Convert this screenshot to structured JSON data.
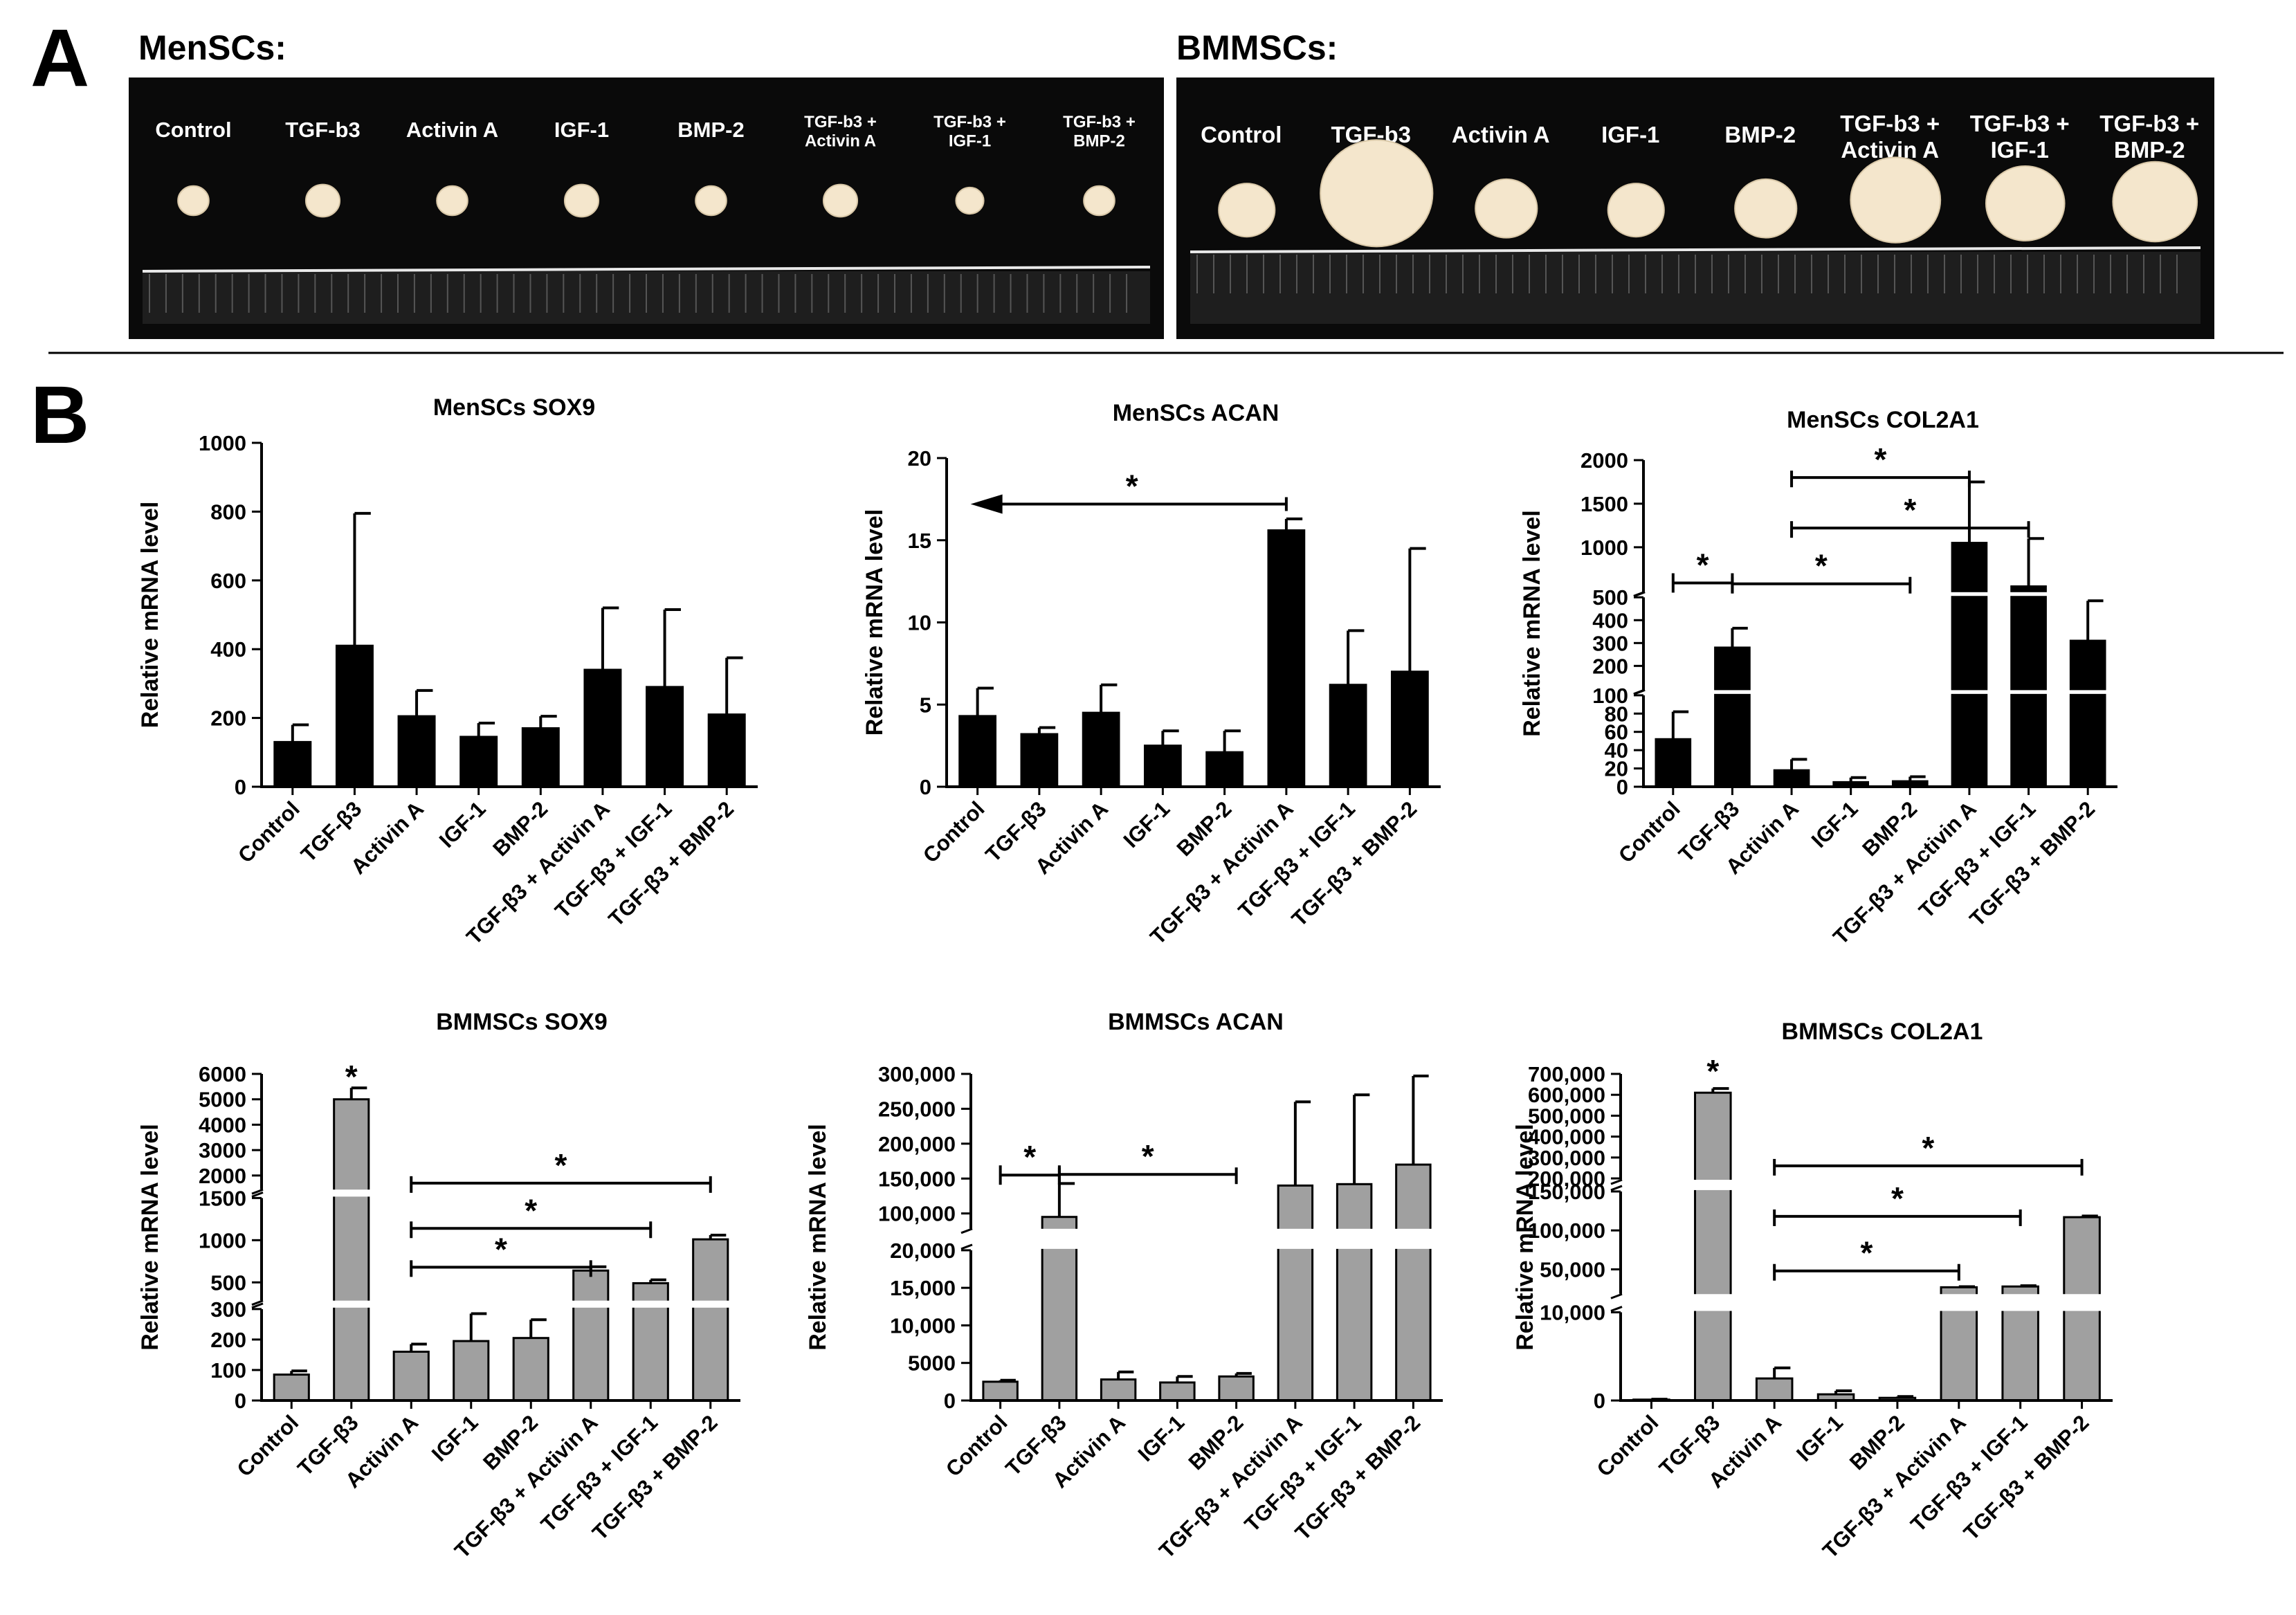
{
  "panel_labels": {
    "a": "A",
    "b": "B"
  },
  "photos": [
    {
      "title": "MenSCs:",
      "labels": [
        [
          "Control"
        ],
        [
          "TGF-b3"
        ],
        [
          "Activin A"
        ],
        [
          "IGF-1"
        ],
        [
          "BMP-2"
        ],
        [
          "TGF-b3 +",
          "Activin A"
        ],
        [
          "TGF-b3 +",
          "IGF-1"
        ],
        [
          "TGF-b3 +",
          "BMP-2"
        ]
      ],
      "pellet_sizes": [
        0.5,
        0.55,
        0.5,
        0.55,
        0.5,
        0.55,
        0.45,
        0.5
      ]
    },
    {
      "title": "BMMSCs:",
      "labels": [
        [
          "Control"
        ],
        [
          "TGF-b3"
        ],
        [
          "Activin A"
        ],
        [
          "IGF-1"
        ],
        [
          "BMP-2"
        ],
        [
          "TGF-b3 +",
          "Activin A"
        ],
        [
          "TGF-b3 +",
          "IGF-1"
        ],
        [
          "TGF-b3 +",
          "BMP-2"
        ]
      ],
      "pellet_sizes": [
        0.5,
        1.0,
        0.55,
        0.5,
        0.55,
        0.8,
        0.7,
        0.75
      ]
    }
  ],
  "colors": {
    "menscs_bar": "#000000",
    "bmmscs_bar": "#a0a0a0",
    "photo_bg": "#0a0a0a",
    "pellet": "#f4e6cc"
  },
  "chart_data": [
    {
      "type": "bar",
      "title": "MenSCs SOX9",
      "ylabel": "Relative mRNA level",
      "categories": [
        "Control",
        "TGF-β3",
        "Activin A",
        "IGF-1",
        "BMP-2",
        "TGF-β3 + Activin A",
        "TGF-β3 + IGF-1",
        "TGF-β3 + BMP-2"
      ],
      "values": [
        130,
        410,
        205,
        145,
        170,
        340,
        290,
        210
      ],
      "errors": [
        50,
        385,
        75,
        40,
        35,
        180,
        225,
        165
      ],
      "ylim": [
        0,
        1000
      ],
      "ticks": [
        {
          "v": 0,
          "l": "0"
        },
        {
          "v": 200,
          "l": "200"
        },
        {
          "v": 400,
          "l": "400"
        },
        {
          "v": 600,
          "l": "600"
        },
        {
          "v": 800,
          "l": "800"
        },
        {
          "v": 1000,
          "l": "1000"
        }
      ],
      "significance": []
    },
    {
      "type": "bar",
      "title": "MenSCs ACAN",
      "ylabel": "Relative mRNA level",
      "categories": [
        "Control",
        "TGF-β3",
        "Activin A",
        "IGF-1",
        "BMP-2",
        "TGF-β3 + Activin A",
        "TGF-β3 + IGF-1",
        "TGF-β3 + BMP-2"
      ],
      "values": [
        4.3,
        3.2,
        4.5,
        2.5,
        2.1,
        15.6,
        6.2,
        7.0
      ],
      "errors": [
        1.7,
        0.4,
        1.7,
        0.9,
        1.3,
        0.7,
        3.3,
        7.5
      ],
      "ylim": [
        0,
        20
      ],
      "ticks": [
        {
          "v": 0,
          "l": "0"
        },
        {
          "v": 5,
          "l": "5"
        },
        {
          "v": 10,
          "l": "10"
        },
        {
          "v": 15,
          "l": "15"
        },
        {
          "v": 20,
          "l": "20"
        }
      ],
      "significance": [
        {
          "type": "arrow",
          "from": 5,
          "to": 0,
          "y": 17.2,
          "label": "*"
        }
      ]
    },
    {
      "type": "bar",
      "title": "MenSCs COL2A1",
      "ylabel": "Relative mRNA level",
      "categories": [
        "Control",
        "TGF-β3",
        "Activin A",
        "IGF-1",
        "BMP-2",
        "TGF-β3 + Activin A",
        "TGF-β3 + IGF-1",
        "TGF-β3 + BMP-2"
      ],
      "values": [
        52,
        280,
        18,
        5,
        6,
        1050,
        550,
        310
      ],
      "errors": [
        30,
        85,
        12,
        5,
        5,
        700,
        550,
        175
      ],
      "segments": [
        {
          "min": 0,
          "max": 100,
          "frac": [
            0,
            0.28
          ]
        },
        {
          "min": 100,
          "max": 500,
          "frac": [
            0.3,
            0.58
          ]
        },
        {
          "min": 500,
          "max": 2000,
          "frac": [
            0.6,
            1.0
          ]
        }
      ],
      "ticks": [
        {
          "v": 0,
          "l": "0"
        },
        {
          "v": 20,
          "l": "20"
        },
        {
          "v": 40,
          "l": "40"
        },
        {
          "v": 60,
          "l": "60"
        },
        {
          "v": 80,
          "l": "80"
        },
        {
          "v": 100,
          "l": "100"
        },
        {
          "v": 200,
          "l": "200"
        },
        {
          "v": 300,
          "l": "300"
        },
        {
          "v": 400,
          "l": "400"
        },
        {
          "v": 500,
          "l": "500"
        },
        {
          "v": 1000,
          "l": "1000"
        },
        {
          "v": 1500,
          "l": "1500"
        },
        {
          "v": 2000,
          "l": "2000"
        }
      ],
      "significance": [
        {
          "type": "bracket",
          "from": 0,
          "to": 1,
          "y": 590,
          "label": "*"
        },
        {
          "type": "line",
          "from": 1,
          "to": 4,
          "y": 580,
          "label": "*"
        },
        {
          "type": "line",
          "from": 2,
          "to": 5,
          "y": 1800,
          "label": "*"
        },
        {
          "type": "line",
          "from": 2,
          "to": 6,
          "y": 1220,
          "label": "*"
        }
      ]
    },
    {
      "type": "bar",
      "title": "BMMSCs SOX9",
      "ylabel": "Relative mRNA level",
      "categories": [
        "Control",
        "TGF-β3",
        "Activin A",
        "IGF-1",
        "BMP-2",
        "TGF-β3 + Activin A",
        "TGF-β3 + IGF-1",
        "TGF-β3 + BMP-2"
      ],
      "values": [
        85,
        5000,
        160,
        195,
        205,
        640,
        490,
        1010
      ],
      "errors": [
        12,
        450,
        25,
        90,
        60,
        45,
        40,
        50
      ],
      "segments": [
        {
          "min": 0,
          "max": 300,
          "frac": [
            0,
            0.28
          ]
        },
        {
          "min": 300,
          "max": 1500,
          "frac": [
            0.31,
            0.62
          ]
        },
        {
          "min": 1500,
          "max": 6000,
          "frac": [
            0.65,
            1.0
          ]
        }
      ],
      "ticks": [
        {
          "v": 0,
          "l": "0"
        },
        {
          "v": 100,
          "l": "100"
        },
        {
          "v": 200,
          "l": "200"
        },
        {
          "v": 300,
          "l": "300"
        },
        {
          "v": 500,
          "l": "500"
        },
        {
          "v": 1000,
          "l": "1000"
        },
        {
          "v": 1500,
          "l": "1500"
        },
        {
          "v": 2000,
          "l": "2000"
        },
        {
          "v": 3000,
          "l": "3000"
        },
        {
          "v": 4000,
          "l": "4000"
        },
        {
          "v": 5000,
          "l": "5000"
        },
        {
          "v": 6000,
          "l": "6000"
        }
      ],
      "significance": [
        {
          "type": "star",
          "at": 1,
          "y": 5950,
          "label": "*"
        },
        {
          "type": "line",
          "from": 2,
          "to": 7,
          "y": 1700,
          "label": "*"
        },
        {
          "type": "line",
          "from": 2,
          "to": 6,
          "y": 1140,
          "label": "*"
        },
        {
          "type": "line",
          "from": 2,
          "to": 5,
          "y": 680,
          "label": "*"
        }
      ]
    },
    {
      "type": "bar",
      "title": "BMMSCs ACAN",
      "ylabel": "Relative mRNA level",
      "categories": [
        "Control",
        "TGF-β3",
        "Activin A",
        "IGF-1",
        "BMP-2",
        "TGF-β3 + Activin A",
        "TGF-β3 + IGF-1",
        "TGF-β3 + BMP-2"
      ],
      "values": [
        2500,
        95000,
        2800,
        2400,
        3200,
        140000,
        142000,
        170000
      ],
      "errors": [
        200,
        48000,
        1000,
        800,
        400,
        120000,
        128000,
        127000
      ],
      "segments": [
        {
          "min": 0,
          "max": 20000,
          "frac": [
            0,
            0.46
          ]
        },
        {
          "min": 80000,
          "max": 300000,
          "frac": [
            0.53,
            1.0
          ]
        }
      ],
      "ticks": [
        {
          "v": 0,
          "l": "0"
        },
        {
          "v": 5000,
          "l": "5000"
        },
        {
          "v": 10000,
          "l": "10,000"
        },
        {
          "v": 15000,
          "l": "15,000"
        },
        {
          "v": 20000,
          "l": "20,000"
        },
        {
          "v": 100000,
          "l": "100,000"
        },
        {
          "v": 150000,
          "l": "150,000"
        },
        {
          "v": 200000,
          "l": "200,000"
        },
        {
          "v": 250000,
          "l": "250,000"
        },
        {
          "v": 300000,
          "l": "300,000"
        }
      ],
      "significance": [
        {
          "type": "bracket",
          "from": 0,
          "to": 1,
          "y": 155000,
          "label": "*"
        },
        {
          "type": "line",
          "from": 1,
          "to": 4,
          "y": 156000,
          "label": "*"
        }
      ]
    },
    {
      "type": "bar",
      "title": "BMMSCs COL2A1",
      "ylabel": "Relative mRNA level",
      "categories": [
        "Control",
        "TGF-β3",
        "Activin A",
        "IGF-1",
        "BMP-2",
        "TGF-β3 + Activin A",
        "TGF-β3 + IGF-1",
        "TGF-β3 + BMP-2"
      ],
      "values": [
        100,
        610000,
        2500,
        700,
        300,
        27000,
        28000,
        117000
      ],
      "errors": [
        50,
        20000,
        1200,
        400,
        150,
        800,
        1000,
        1500
      ],
      "segments": [
        {
          "min": 0,
          "max": 10000,
          "frac": [
            0,
            0.27
          ]
        },
        {
          "min": 20000,
          "max": 150000,
          "frac": [
            0.33,
            0.64
          ]
        },
        {
          "min": 200000,
          "max": 700000,
          "frac": [
            0.68,
            1.0
          ]
        }
      ],
      "ticks": [
        {
          "v": 0,
          "l": "0"
        },
        {
          "v": 10000,
          "l": "10,000"
        },
        {
          "v": 50000,
          "l": "50,000"
        },
        {
          "v": 100000,
          "l": "100,000"
        },
        {
          "v": 150000,
          "l": "150,000"
        },
        {
          "v": 200000,
          "l": "200,000"
        },
        {
          "v": 300000,
          "l": "300,000"
        },
        {
          "v": 400000,
          "l": "400,000"
        },
        {
          "v": 500000,
          "l": "500,000"
        },
        {
          "v": 600000,
          "l": "600,000"
        },
        {
          "v": 700000,
          "l": "700,000"
        }
      ],
      "significance": [
        {
          "type": "star",
          "at": 1,
          "y": 720000,
          "label": "*"
        },
        {
          "type": "line",
          "from": 2,
          "to": 7,
          "y": 260000,
          "label": "*"
        },
        {
          "type": "line",
          "from": 2,
          "to": 6,
          "y": 118000,
          "label": "*"
        },
        {
          "type": "line",
          "from": 2,
          "to": 5,
          "y": 48000,
          "label": "*"
        }
      ]
    }
  ]
}
